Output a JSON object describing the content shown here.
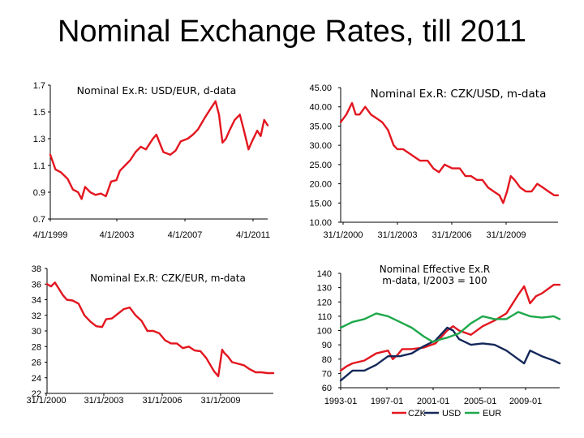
{
  "slide": {
    "title": "Nominal Exchange Rates, till 2011"
  },
  "colors": {
    "red": "#e3161f",
    "navy": "#14285a",
    "green": "#1ea84a",
    "black": "#000000"
  },
  "chart_data": [
    {
      "id": "usd_eur",
      "type": "line",
      "title": "Nominal Ex.R: USD/EUR, d-data",
      "ylim": [
        0.7,
        1.7
      ],
      "yticks": [
        "0.7",
        "0.9",
        "1.1",
        "1.3",
        "1.5",
        "1.7"
      ],
      "xticks": [
        "4/1/1999",
        "4/1/2003",
        "4/1/2007",
        "4/1/2011"
      ],
      "xlim": [
        1999.0,
        2011.5
      ],
      "series": [
        {
          "name": "USD/EUR",
          "color": "#e3161f",
          "x": [
            1999.0,
            1999.3,
            1999.6,
            2000.0,
            2000.3,
            2000.6,
            2000.8,
            2001.0,
            2001.3,
            2001.6,
            2001.9,
            2002.2,
            2002.5,
            2002.8,
            2003.0,
            2003.3,
            2003.6,
            2003.9,
            2004.2,
            2004.5,
            2004.9,
            2005.1,
            2005.5,
            2005.9,
            2006.2,
            2006.5,
            2006.9,
            2007.2,
            2007.5,
            2007.9,
            2008.2,
            2008.5,
            2008.7,
            2008.9,
            2009.1,
            2009.3,
            2009.6,
            2009.9,
            2010.1,
            2010.4,
            2010.6,
            2010.9,
            2011.1,
            2011.3,
            2011.5
          ],
          "y": [
            1.18,
            1.07,
            1.05,
            1.0,
            0.92,
            0.9,
            0.85,
            0.94,
            0.9,
            0.88,
            0.89,
            0.87,
            0.98,
            0.99,
            1.06,
            1.1,
            1.14,
            1.2,
            1.24,
            1.22,
            1.3,
            1.33,
            1.2,
            1.18,
            1.21,
            1.28,
            1.3,
            1.33,
            1.37,
            1.46,
            1.52,
            1.58,
            1.48,
            1.27,
            1.3,
            1.36,
            1.44,
            1.48,
            1.38,
            1.22,
            1.28,
            1.36,
            1.32,
            1.44,
            1.4
          ]
        }
      ]
    },
    {
      "id": "czk_usd",
      "type": "line",
      "title": "Nominal Ex.R: CZK/USD, m-data",
      "ylim": [
        10,
        45
      ],
      "yticks": [
        "10.00",
        "15.00",
        "20.00",
        "25.00",
        "30.00",
        "35.00",
        "40.00",
        "45.00"
      ],
      "xticks": [
        "31/1/2000",
        "31/1/2003",
        "31/1/2006",
        "31/1/2009"
      ],
      "xlim": [
        2000.0,
        2011.5
      ],
      "series": [
        {
          "name": "CZK/USD",
          "color": "#e3161f",
          "x": [
            2000.0,
            2000.3,
            2000.6,
            2000.8,
            2001.0,
            2001.3,
            2001.6,
            2001.9,
            2002.2,
            2002.5,
            2002.8,
            2003.0,
            2003.3,
            2003.6,
            2003.9,
            2004.2,
            2004.6,
            2004.9,
            2005.2,
            2005.5,
            2005.9,
            2006.3,
            2006.6,
            2006.9,
            2007.2,
            2007.5,
            2007.8,
            2008.1,
            2008.4,
            2008.6,
            2008.8,
            2009.0,
            2009.2,
            2009.5,
            2009.8,
            2010.1,
            2010.4,
            2010.7,
            2011.0,
            2011.3,
            2011.5
          ],
          "y": [
            36,
            38,
            41,
            38,
            38,
            40,
            38,
            37,
            36,
            34,
            30,
            29,
            29,
            28,
            27,
            26,
            26,
            24,
            23,
            25,
            24,
            24,
            22,
            22,
            21,
            21,
            19,
            18,
            17,
            15,
            18,
            22,
            21,
            19,
            18,
            18,
            20,
            19,
            18,
            17,
            17
          ]
        }
      ]
    },
    {
      "id": "czk_eur",
      "type": "line",
      "title": "Nominal Ex.R: CZK/EUR, m-data",
      "ylim": [
        22,
        38
      ],
      "yticks": [
        "22",
        "24",
        "26",
        "28",
        "30",
        "32",
        "34",
        "36",
        "38"
      ],
      "xticks": [
        "31/1/2000",
        "31/1/2003",
        "31/1/2006",
        "31/1/2009"
      ],
      "xlim": [
        2000.0,
        2011.5
      ],
      "series": [
        {
          "name": "CZK/EUR",
          "color": "#e3161f",
          "x": [
            2000.0,
            2000.2,
            2000.4,
            2000.6,
            2000.8,
            2001.0,
            2001.3,
            2001.6,
            2001.9,
            2002.2,
            2002.5,
            2002.8,
            2003.0,
            2003.3,
            2003.6,
            2003.9,
            2004.2,
            2004.5,
            2004.8,
            2005.1,
            2005.4,
            2005.7,
            2006.0,
            2006.3,
            2006.6,
            2006.9,
            2007.2,
            2007.5,
            2007.8,
            2008.1,
            2008.4,
            2008.5,
            2008.7,
            2008.9,
            2009.0,
            2009.2,
            2009.4,
            2009.7,
            2010.0,
            2010.3,
            2010.6,
            2010.9,
            2011.2,
            2011.5
          ],
          "y": [
            36.0,
            35.7,
            36.2,
            35.4,
            34.6,
            34.0,
            33.9,
            33.5,
            32.0,
            31.2,
            30.6,
            30.5,
            31.5,
            31.6,
            32.2,
            32.8,
            33.0,
            32.0,
            31.3,
            30.0,
            30.0,
            29.7,
            28.8,
            28.4,
            28.4,
            27.8,
            28.0,
            27.5,
            27.4,
            26.5,
            25.2,
            24.8,
            24.2,
            27.6,
            27.2,
            26.7,
            26.0,
            25.8,
            25.6,
            25.1,
            24.7,
            24.7,
            24.6,
            24.6
          ]
        }
      ]
    },
    {
      "id": "neer",
      "type": "line",
      "title": [
        "Nominal Effective Ex.R",
        "m-data, I/2003 = 100"
      ],
      "ylim": [
        60,
        140
      ],
      "yticks": [
        "60",
        "70",
        "80",
        "90",
        "100",
        "110",
        "120",
        "130",
        "140"
      ],
      "xticks": [
        "1993-01",
        "1997-01",
        "2001-01",
        "2005-01",
        "2009-01"
      ],
      "xlim": [
        1993.0,
        2011.5
      ],
      "legend": [
        "CZK",
        "USD",
        "EUR"
      ],
      "series": [
        {
          "name": "CZK",
          "color": "#e3161f",
          "x": [
            1993.0,
            1993.5,
            1994.0,
            1995.0,
            1996.0,
            1997.0,
            1997.4,
            1997.8,
            1998.2,
            1999.0,
            2000.0,
            2001.0,
            2002.0,
            2002.5,
            2003.0,
            2004.0,
            2005.0,
            2006.0,
            2007.0,
            2008.0,
            2008.5,
            2009.0,
            2009.5,
            2010.0,
            2011.0,
            2011.5
          ],
          "y": [
            72,
            75,
            77,
            79,
            84,
            86,
            80,
            83,
            87,
            87,
            88,
            91,
            100,
            103,
            100,
            97,
            103,
            107,
            112,
            125,
            131,
            119,
            124,
            126,
            132,
            132
          ]
        },
        {
          "name": "USD",
          "color": "#14285a",
          "x": [
            1993.0,
            1994.0,
            1995.0,
            1996.0,
            1997.0,
            1998.0,
            1999.0,
            2000.0,
            2001.0,
            2002.0,
            2002.5,
            2003.0,
            2004.0,
            2005.0,
            2006.0,
            2007.0,
            2008.0,
            2008.5,
            2009.0,
            2010.0,
            2011.0,
            2011.5
          ],
          "y": [
            65,
            72,
            72,
            76,
            82,
            82,
            84,
            89,
            93,
            102,
            100,
            94,
            90,
            91,
            90,
            86,
            80,
            77,
            86,
            82,
            79,
            77
          ]
        },
        {
          "name": "EUR",
          "color": "#1ea84a",
          "x": [
            1993.0,
            1994.0,
            1995.0,
            1996.0,
            1997.0,
            1998.0,
            1999.0,
            2000.0,
            2000.8,
            2001.5,
            2002.0,
            2003.0,
            2004.0,
            2005.0,
            2006.0,
            2007.0,
            2008.0,
            2009.0,
            2010.0,
            2011.0,
            2011.5
          ],
          "y": [
            102,
            106,
            108,
            112,
            110,
            106,
            102,
            96,
            92,
            94,
            95,
            98,
            105,
            110,
            108,
            108,
            113,
            110,
            109,
            110,
            108
          ]
        }
      ]
    }
  ]
}
